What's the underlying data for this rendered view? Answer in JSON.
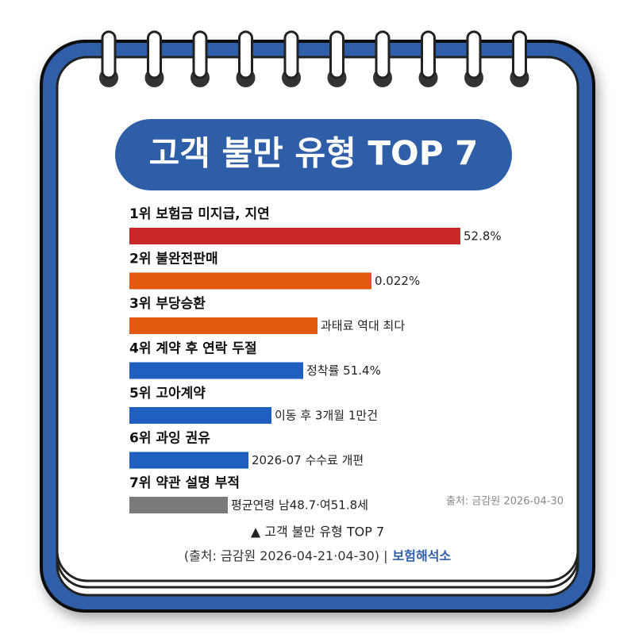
{
  "title": "고객 불만 유형 TOP 7",
  "items": [
    {
      "label": "1위 보험금 미지급, 지연",
      "note": "52.8%"
    },
    {
      "label": "2위 불완전판매",
      "note": "0.022%"
    },
    {
      "label": "3위 부당승환",
      "note": "과태료 역대 최다"
    },
    {
      "label": "4위 계약 후 연락 두절",
      "note": "정착률 51.4%"
    },
    {
      "label": "5위 고아계약",
      "note": "이동 후 3개월 1만건"
    },
    {
      "label": "6위 과잉 권유",
      "note": "2026-07 수수료 개편"
    },
    {
      "label": "7위 약관 설명 부적",
      "note": "평균연령 남48.7·여51.8세"
    }
  ],
  "source_note": "출처: 금감원 2026-04-30",
  "caption": "▲ 고객 불만 유형 TOP 7",
  "credit": "(출처: 금감원 2026-04-21·04-30) |",
  "brand": "보험해석소"
}
